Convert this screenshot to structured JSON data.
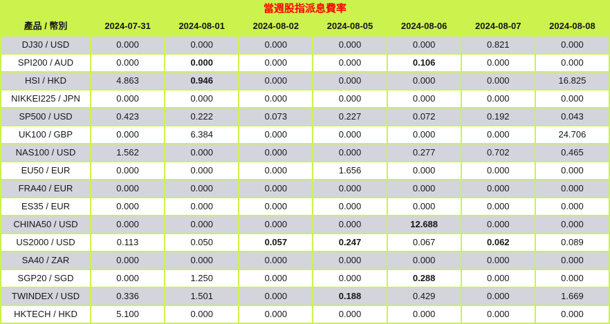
{
  "title": "當週股指派息費率",
  "colors": {
    "accent_green": "#ccf24e",
    "alt_row_gray": "#d4d4dd",
    "title_red": "#ff0000"
  },
  "table": {
    "corner_header": "產品 / 幣別",
    "date_columns": [
      "2024-07-31",
      "2024-08-01",
      "2024-08-02",
      "2024-08-05",
      "2024-08-06",
      "2024-08-07",
      "2024-08-08"
    ],
    "rows": [
      {
        "product": "DJ30 / USD",
        "values": [
          "0.000",
          "0.000",
          "0.000",
          "0.000",
          "0.000",
          "0.821",
          "0.000"
        ],
        "bold": []
      },
      {
        "product": "SPI200 / AUD",
        "values": [
          "0.000",
          "0.000",
          "0.000",
          "0.000",
          "0.106",
          "0.000",
          "0.000"
        ],
        "bold": [
          1,
          4
        ]
      },
      {
        "product": "HSI / HKD",
        "values": [
          "4.863",
          "0.946",
          "0.000",
          "0.000",
          "0.000",
          "0.000",
          "16.825"
        ],
        "bold": [
          1
        ]
      },
      {
        "product": "NIKKEI225 / JPN",
        "values": [
          "0.000",
          "0.000",
          "0.000",
          "0.000",
          "0.000",
          "0.000",
          "0.000"
        ],
        "bold": []
      },
      {
        "product": "SP500 / USD",
        "values": [
          "0.423",
          "0.222",
          "0.073",
          "0.227",
          "0.072",
          "0.192",
          "0.043"
        ],
        "bold": []
      },
      {
        "product": "UK100 / GBP",
        "values": [
          "0.000",
          "6.384",
          "0.000",
          "0.000",
          "0.000",
          "0.000",
          "24.706"
        ],
        "bold": []
      },
      {
        "product": "NAS100 / USD",
        "values": [
          "1.562",
          "0.000",
          "0.000",
          "0.000",
          "0.277",
          "0.702",
          "0.465"
        ],
        "bold": []
      },
      {
        "product": "EU50 / EUR",
        "values": [
          "0.000",
          "0.000",
          "0.000",
          "1.656",
          "0.000",
          "0.000",
          "0.000"
        ],
        "bold": []
      },
      {
        "product": "FRA40 / EUR",
        "values": [
          "0.000",
          "0.000",
          "0.000",
          "0.000",
          "0.000",
          "0.000",
          "0.000"
        ],
        "bold": []
      },
      {
        "product": "ES35 / EUR",
        "values": [
          "0.000",
          "0.000",
          "0.000",
          "0.000",
          "0.000",
          "0.000",
          "0.000"
        ],
        "bold": []
      },
      {
        "product": "CHINA50 / USD",
        "values": [
          "0.000",
          "0.000",
          "0.000",
          "0.000",
          "12.688",
          "0.000",
          "0.000"
        ],
        "bold": [
          4
        ]
      },
      {
        "product": "US2000 / USD",
        "values": [
          "0.113",
          "0.050",
          "0.057",
          "0.247",
          "0.067",
          "0.062",
          "0.089"
        ],
        "bold": [
          2,
          3,
          5
        ]
      },
      {
        "product": "SA40 / ZAR",
        "values": [
          "0.000",
          "0.000",
          "0.000",
          "0.000",
          "0.000",
          "0.000",
          "0.000"
        ],
        "bold": []
      },
      {
        "product": "SGP20 / SGD",
        "values": [
          "0.000",
          "1.250",
          "0.000",
          "0.000",
          "0.288",
          "0.000",
          "0.000"
        ],
        "bold": [
          4
        ]
      },
      {
        "product": "TWINDEX / USD",
        "values": [
          "0.336",
          "1.501",
          "0.000",
          "0.188",
          "0.429",
          "0.000",
          "1.669"
        ],
        "bold": [
          3
        ]
      },
      {
        "product": "HKTECH / HKD",
        "values": [
          "5.100",
          "0.000",
          "0.000",
          "0.000",
          "0.000",
          "0.000",
          "0.000"
        ],
        "bold": []
      }
    ]
  }
}
